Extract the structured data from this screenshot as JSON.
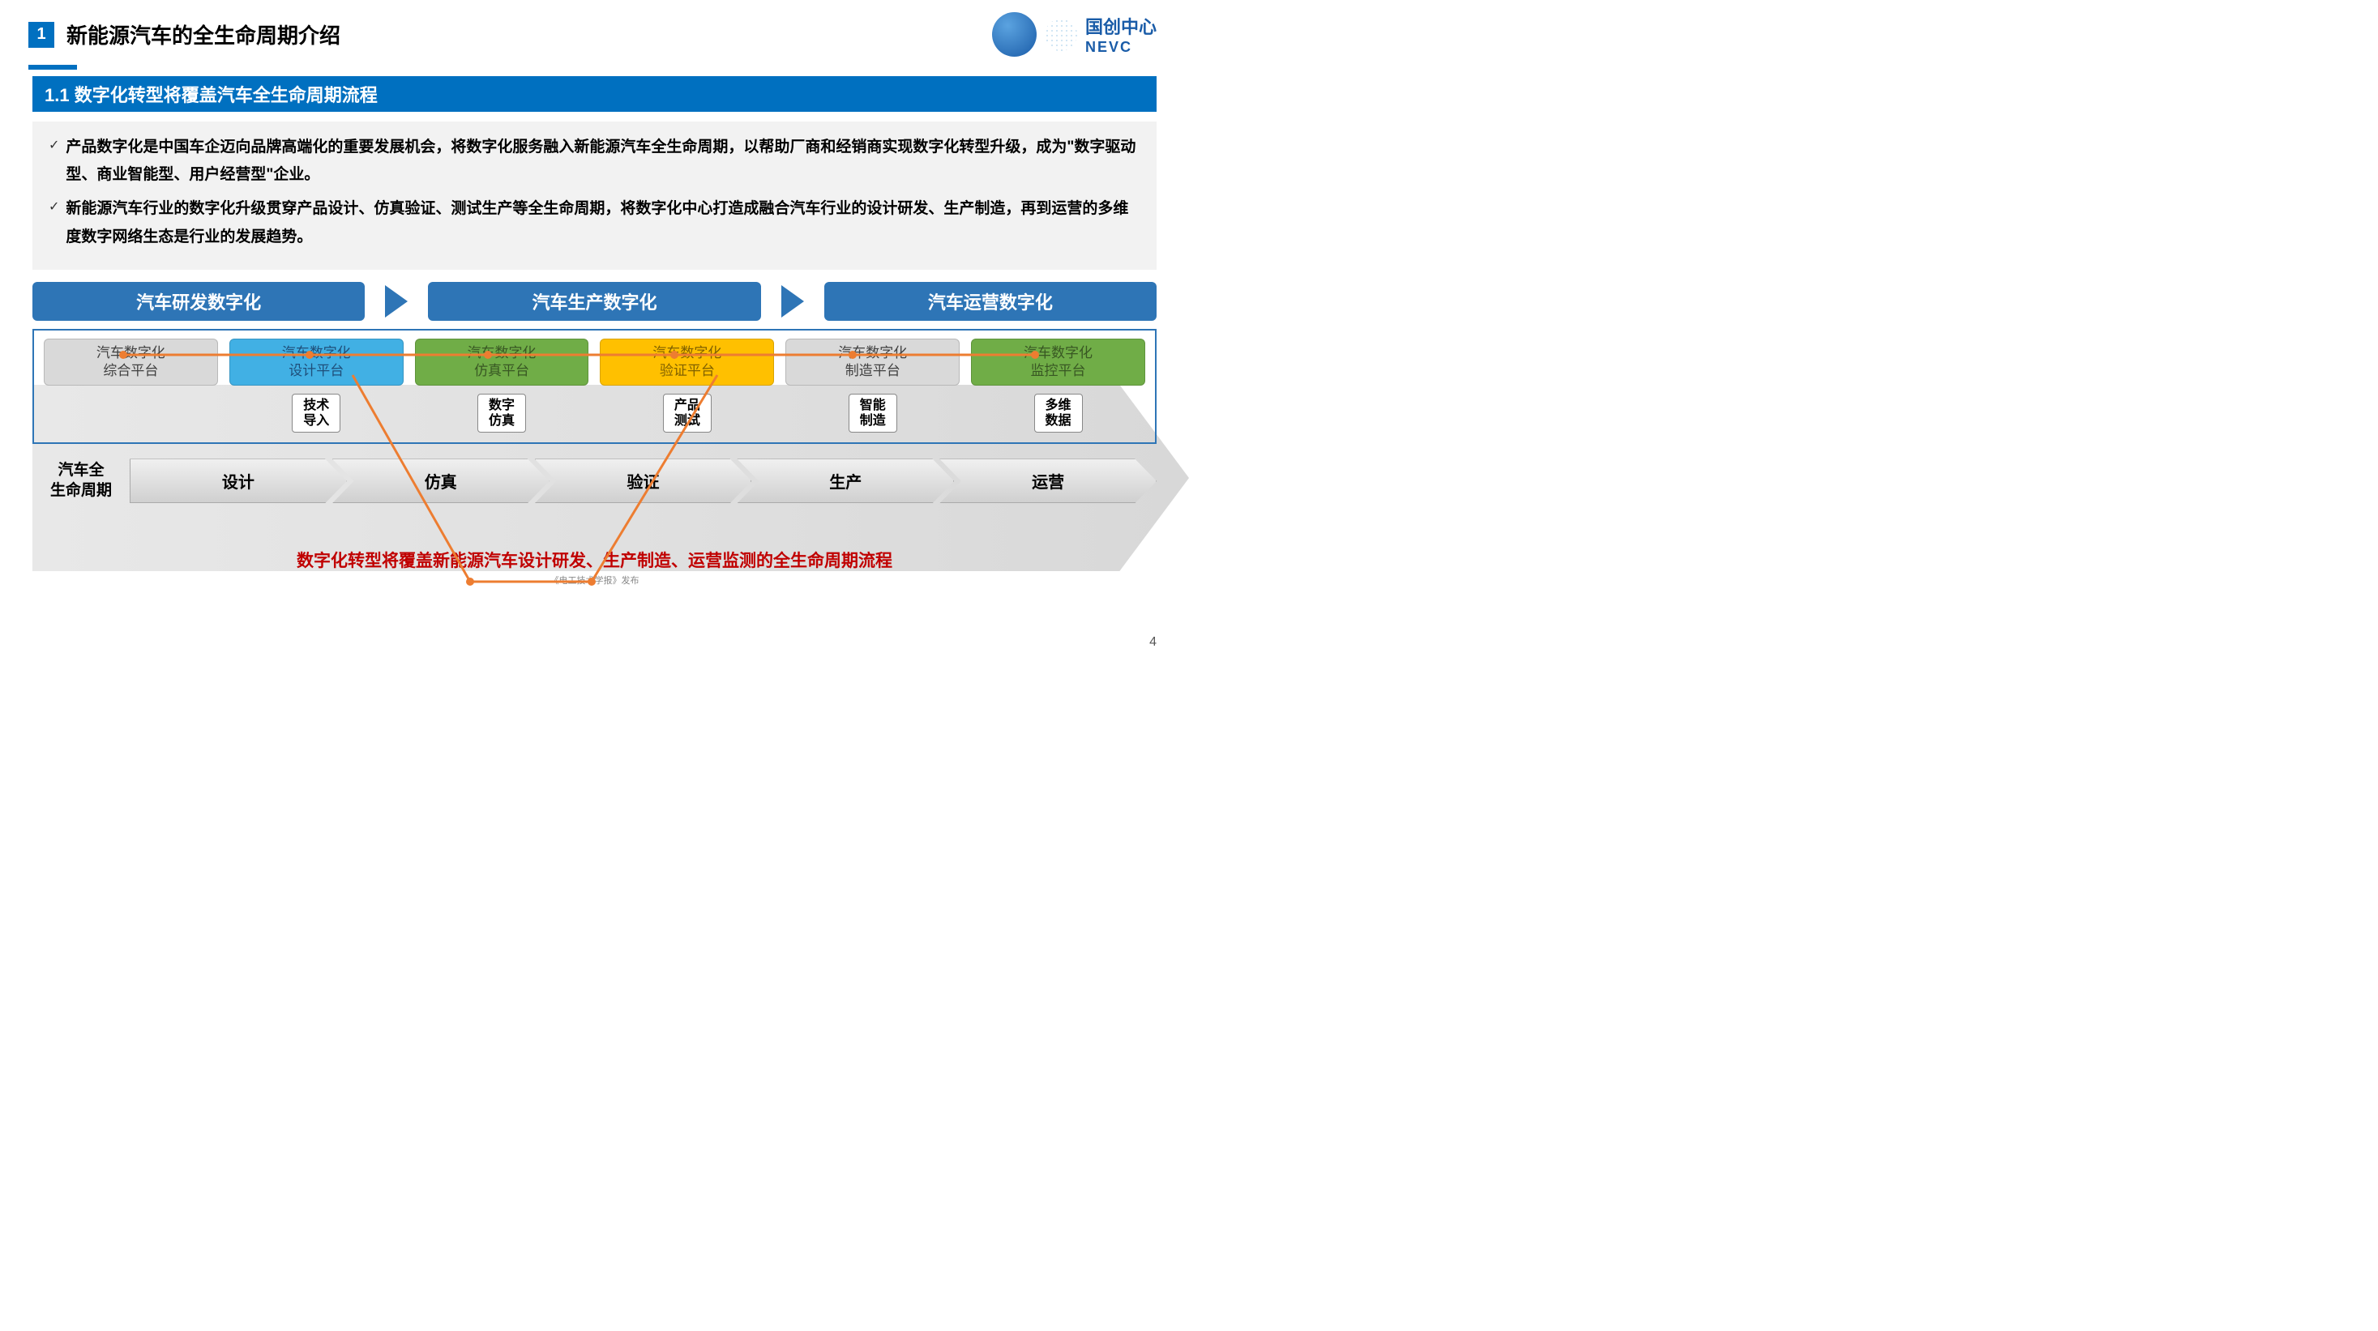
{
  "header": {
    "section_num": "1",
    "section_title": "新能源汽车的全生命周期介绍",
    "logo_cn": "国创中心",
    "logo_en": "NEVC"
  },
  "subsection": "1.1 数字化转型将覆盖汽车全生命周期流程",
  "bullets": [
    "产品数字化是中国车企迈向品牌高端化的重要发展机会，将数字化服务融入新能源汽车全生命周期，以帮助厂商和经销商实现数字化转型升级，成为\"数字驱动型、商业智能型、用户经营型\"企业。",
    "新能源汽车行业的数字化升级贯穿产品设计、仿真验证、测试生产等全生命周期，将数字化中心打造成融合汽车行业的设计研发、生产制造，再到运营的多维度数字网络生态是行业的发展趋势。"
  ],
  "stages": [
    "汽车研发数字化",
    "汽车生产数字化",
    "汽车运营数字化"
  ],
  "platforms": [
    {
      "l1": "汽车数字化",
      "l2": "综合平台",
      "bg": "#d9d9d9",
      "fg": "#404040"
    },
    {
      "l1": "汽车数字化",
      "l2": "设计平台",
      "bg": "#41b0e4",
      "fg": "#1f4e79"
    },
    {
      "l1": "汽车数字化",
      "l2": "仿真平台",
      "bg": "#70ad47",
      "fg": "#385723"
    },
    {
      "l1": "汽车数字化",
      "l2": "验证平台",
      "bg": "#ffc000",
      "fg": "#7f6000"
    },
    {
      "l1": "汽车数字化",
      "l2": "制造平台",
      "bg": "#d9d9d9",
      "fg": "#404040"
    },
    {
      "l1": "汽车数字化",
      "l2": "监控平台",
      "bg": "#70ad47",
      "fg": "#385723"
    }
  ],
  "subboxes": [
    "",
    "技术\n导入",
    "数字\n仿真",
    "产品\n测试",
    "智能\n制造",
    "多维\n数据"
  ],
  "lifecycle": {
    "label": "汽车全\n生命周期",
    "steps": [
      "设计",
      "仿真",
      "验证",
      "生产",
      "运营"
    ]
  },
  "conclusion": "数字化转型将覆盖新能源汽车设计研发、生产制造、运营监测的全生命周期流程",
  "footer": "《电工技术学报》发布",
  "page_num": "4",
  "colors": {
    "primary_blue": "#0070c0",
    "stage_blue": "#2e75b6",
    "orange": "#ed7d31",
    "red": "#c00000"
  }
}
